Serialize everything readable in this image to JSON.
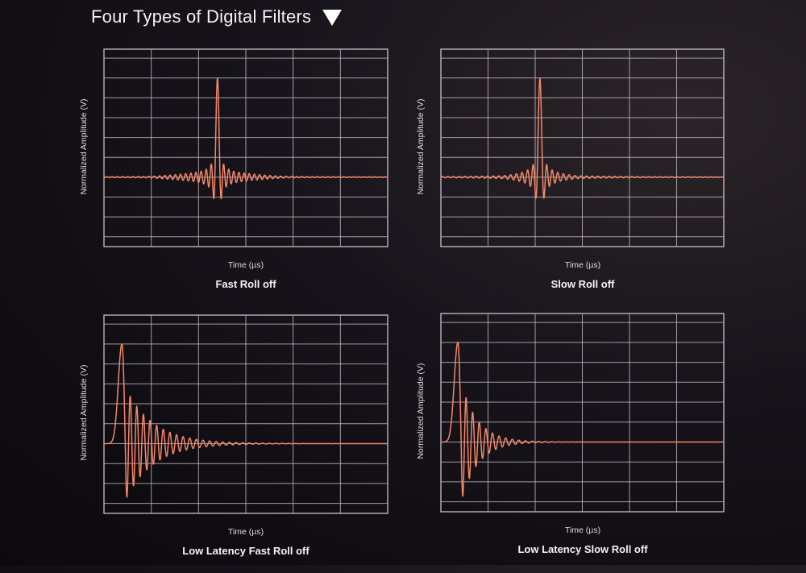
{
  "title": "Four Types of Digital Filters",
  "title_icon": "triangle-down-icon",
  "colors": {
    "trace": "#f2876a",
    "grid": "#b9b6b8",
    "background": "#0f0c10"
  },
  "chart_data": [
    {
      "type": "line",
      "title": "Fast Roll off",
      "xlabel": "Time (µs)",
      "ylabel": "Normalized Amplitude (V)",
      "xlim": [
        0,
        6
      ],
      "ylim": [
        -0.7,
        1.29
      ],
      "x_divisions": 6,
      "y_gridlines": [
        -0.6,
        -0.4,
        -0.2,
        0,
        0.2,
        0.4,
        0.6,
        0.8,
        1.0,
        1.2
      ],
      "grid": true,
      "response": "linear-phase",
      "impulse_time": 2.4,
      "peak": 1.0,
      "trough": -0.2,
      "ring_period": 0.11,
      "ring_extent": 1.5,
      "ring_amp": 0.05
    },
    {
      "type": "line",
      "title": "Slow Roll off",
      "xlabel": "Time (µs)",
      "ylabel": "Normalized Amplitude (V)",
      "xlim": [
        0,
        6
      ],
      "ylim": [
        -0.7,
        1.29
      ],
      "x_divisions": 6,
      "y_gridlines": [
        -0.6,
        -0.4,
        -0.2,
        0,
        0.2,
        0.4,
        0.6,
        0.8,
        1.0,
        1.2
      ],
      "grid": true,
      "response": "linear-phase",
      "impulse_time": 2.1,
      "peak": 1.0,
      "trough": -0.2,
      "ring_period": 0.12,
      "ring_extent": 0.8,
      "ring_amp": 0.05
    },
    {
      "type": "line",
      "title": "Low Latency Fast Roll off",
      "xlabel": "Time (µs)",
      "ylabel": "Normalized Amplitude (V)",
      "xlim": [
        0,
        6
      ],
      "ylim": [
        -0.7,
        1.29
      ],
      "x_divisions": 6,
      "y_gridlines": [
        -0.6,
        -0.4,
        -0.2,
        0,
        0.2,
        0.4,
        0.6,
        0.8,
        1.0,
        1.2
      ],
      "grid": true,
      "response": "minimum-phase",
      "impulse_time": 0.38,
      "peak": 1.0,
      "trough": -0.57,
      "ring_period": 0.14,
      "ring_extent": 3.0
    },
    {
      "type": "line",
      "title": "Low Latency Slow Roll off",
      "xlabel": "Time (µs)",
      "ylabel": "Normalized Amplitude (V)",
      "xlim": [
        0,
        6
      ],
      "ylim": [
        -0.7,
        1.29
      ],
      "x_divisions": 6,
      "y_gridlines": [
        -0.6,
        -0.4,
        -0.2,
        0,
        0.2,
        0.4,
        0.6,
        0.8,
        1.0,
        1.2
      ],
      "grid": true,
      "response": "minimum-phase",
      "impulse_time": 0.36,
      "peak": 1.0,
      "trough": -0.6,
      "ring_period": 0.14,
      "ring_extent": 1.8
    }
  ]
}
